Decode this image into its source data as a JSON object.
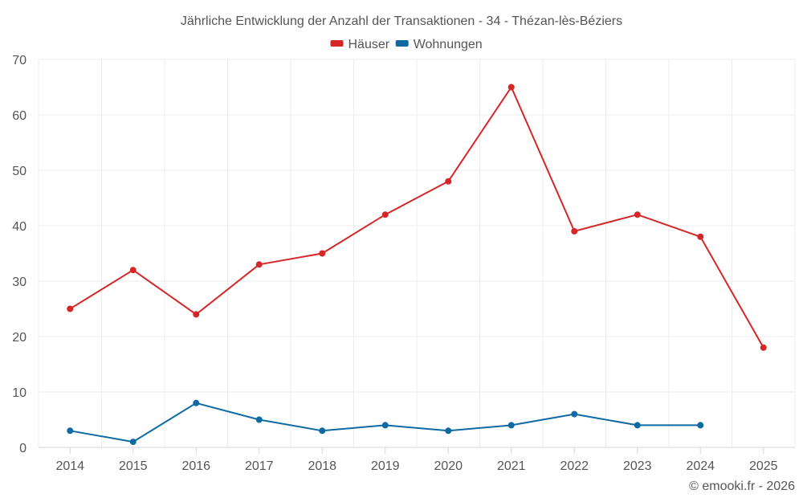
{
  "chart_data": {
    "type": "line",
    "title": "Jährliche Entwicklung der Anzahl der Transaktionen - 34 - Thézan-lès-Béziers",
    "categories": [
      "2014",
      "2015",
      "2016",
      "2017",
      "2018",
      "2019",
      "2020",
      "2021",
      "2022",
      "2023",
      "2024",
      "2025"
    ],
    "series": [
      {
        "name": "Häuser",
        "color": "#d62728",
        "values": [
          25,
          32,
          24,
          33,
          35,
          42,
          48,
          65,
          39,
          42,
          38,
          18
        ]
      },
      {
        "name": "Wohnungen",
        "color": "#0e6aa3",
        "values": [
          3,
          1,
          8,
          5,
          3,
          4,
          3,
          4,
          6,
          4,
          4,
          null
        ]
      }
    ],
    "xlabel": "",
    "ylabel": "",
    "ylim": [
      0,
      70
    ],
    "yticks": [
      0,
      10,
      20,
      30,
      40,
      50,
      60,
      70
    ],
    "grid": true,
    "legend_position": "top-center"
  },
  "credit": "© emooki.fr - 2026"
}
